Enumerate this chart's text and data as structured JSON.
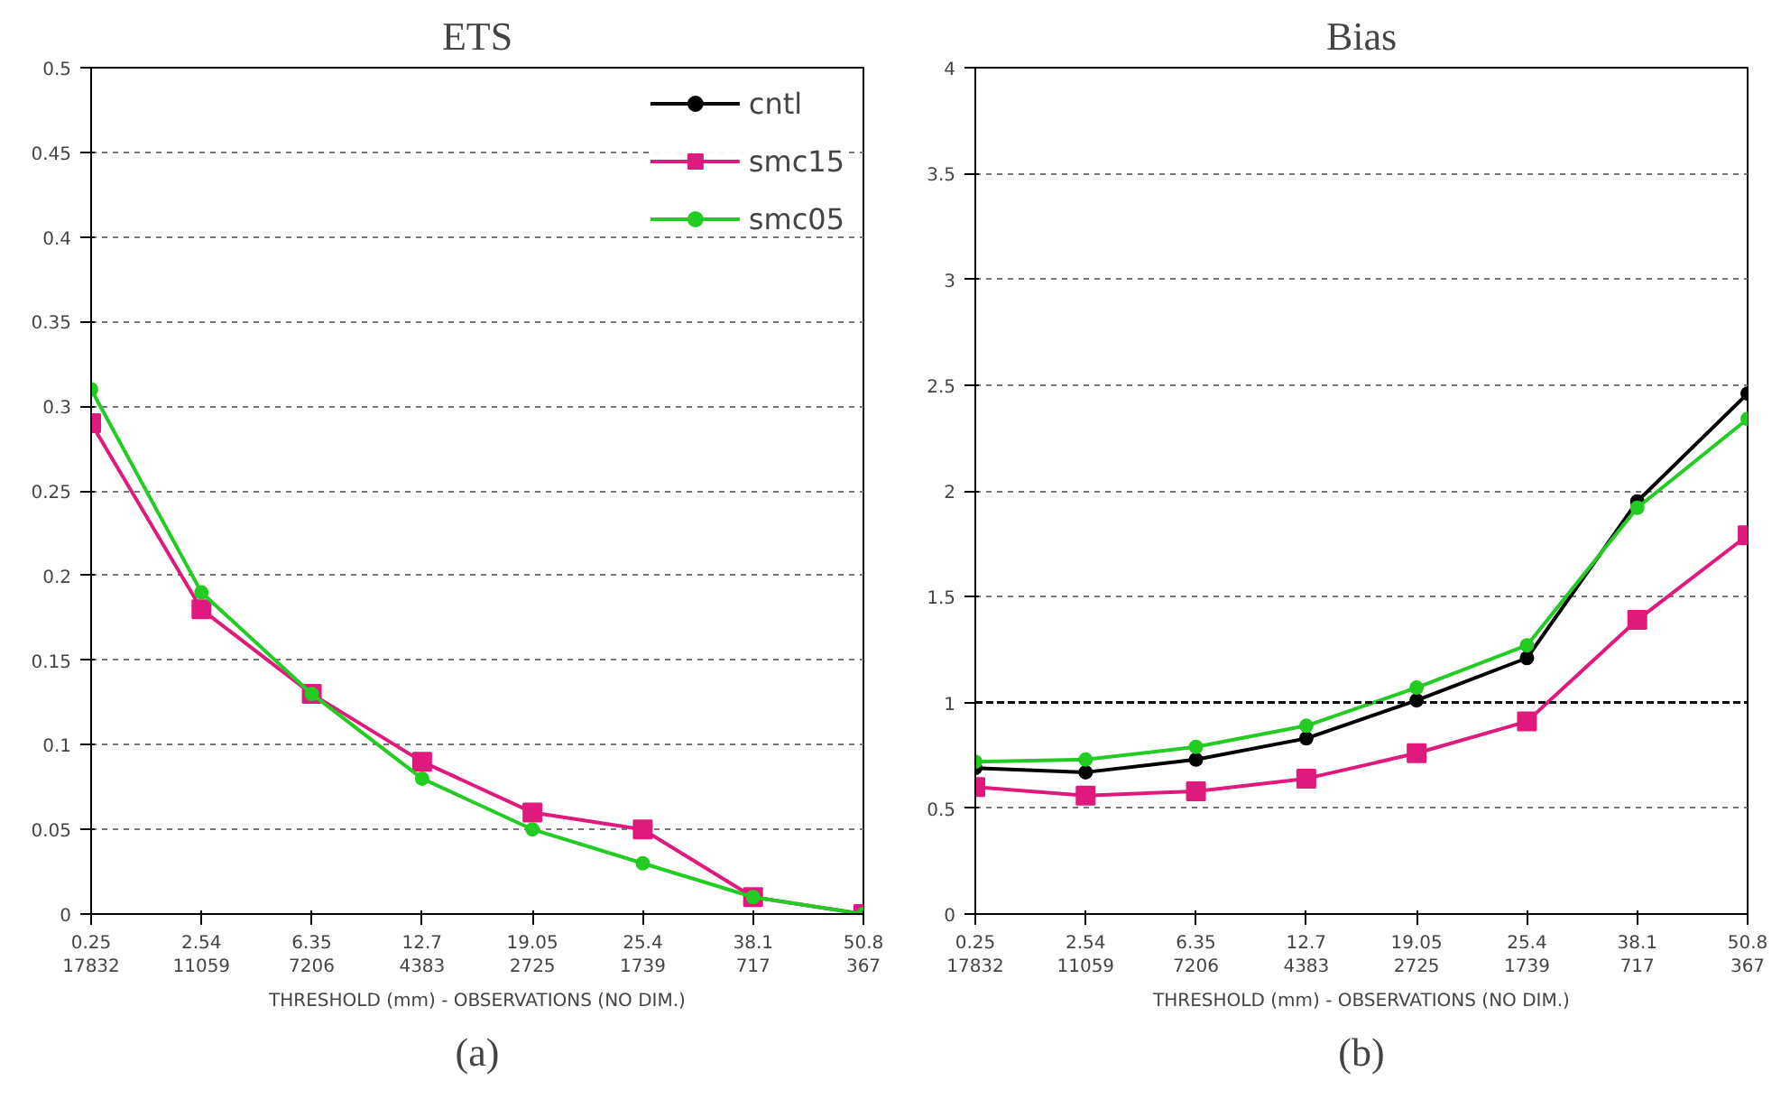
{
  "chart_data": [
    {
      "type": "line",
      "title": "ETS",
      "categories": [
        "0.25\n17832",
        "2.54\n11059",
        "6.35\n7206",
        "12.7\n4383",
        "19.05\n2725",
        "25.4\n1739",
        "38.1\n717",
        "50.8\n367"
      ],
      "xlabel": "THRESHOLD (mm) - OBSERVATIONS (NO DIM.)",
      "ylim": [
        0,
        0.5
      ],
      "yticks": [
        0,
        0.05,
        0.1,
        0.15,
        0.2,
        0.25,
        0.3,
        0.35,
        0.4,
        0.45,
        0.5
      ],
      "grid": "y",
      "legend": "top right",
      "series": [
        {
          "name": "cntl",
          "color": "#000000",
          "marker": "circle",
          "values": [
            null,
            null,
            null,
            null,
            null,
            null,
            null,
            null
          ]
        },
        {
          "name": "smc15",
          "color": "#e0197d",
          "marker": "square",
          "values": [
            0.29,
            0.18,
            0.13,
            0.09,
            0.06,
            0.05,
            0.01,
            0.0
          ]
        },
        {
          "name": "smc05",
          "color": "#22cc22",
          "marker": "circle",
          "values": [
            0.31,
            0.19,
            0.13,
            0.08,
            0.05,
            0.03,
            0.01,
            0.0
          ]
        }
      ],
      "annotations": [
        "(a)"
      ]
    },
    {
      "type": "line",
      "title": "Bias",
      "categories": [
        "0.25\n17832",
        "2.54\n11059",
        "6.35\n7206",
        "12.7\n4383",
        "19.05\n2725",
        "25.4\n1739",
        "38.1\n717",
        "50.8\n367"
      ],
      "xlabel": "THRESHOLD (mm) - OBSERVATIONS (NO DIM.)",
      "ylim": [
        0,
        4
      ],
      "yticks": [
        0,
        0.5,
        1,
        1.5,
        2,
        2.5,
        3,
        3.5,
        4
      ],
      "grid": "y",
      "ref_lines": [
        {
          "axis": "y",
          "value": 1,
          "color": "#000000",
          "line_style": "dashed"
        }
      ],
      "series": [
        {
          "color": "#000000",
          "marker": "circle",
          "values": [
            0.69,
            0.67,
            0.73,
            0.83,
            1.01,
            1.21,
            1.95,
            2.46
          ]
        },
        {
          "color": "#e0197d",
          "marker": "square",
          "values": [
            0.6,
            0.56,
            0.58,
            0.64,
            0.76,
            0.91,
            1.39,
            1.79
          ]
        },
        {
          "color": "#22cc22",
          "marker": "circle",
          "values": [
            0.72,
            0.73,
            0.79,
            0.89,
            1.07,
            1.27,
            1.92,
            2.34
          ]
        }
      ],
      "annotations": [
        "(b)"
      ]
    }
  ]
}
